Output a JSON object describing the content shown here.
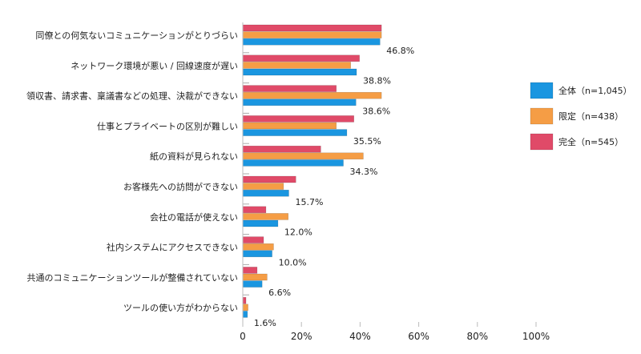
{
  "chart_data": {
    "type": "bar",
    "orientation": "horizontal",
    "title": "",
    "xlabel": "",
    "ylabel": "",
    "xlim": [
      0,
      100
    ],
    "x_ticks": [
      "0",
      "20%",
      "40%",
      "60%",
      "80%",
      "100%"
    ],
    "grid": false,
    "legend_position": "right",
    "categories": [
      "同僚との何気ないコミュニケーションがとりづらい",
      "ネットワーク環境が悪い / 回線速度が遅い",
      "領収書、請求書、稟議書などの処理、決裁ができない",
      "仕事とプライベートの区別が難しい",
      "紙の資料が見られない",
      "お客様先への訪問ができない",
      "会社の電話が使えない",
      "社内システムにアクセスできない",
      "共通のコミュニケーションツールが整備されていない",
      "ツールの使い方がわからない"
    ],
    "series": [
      {
        "name": "完全（n=545）",
        "color": "#e04a68",
        "values": [
          47.3,
          39.8,
          31.9,
          37.9,
          26.6,
          18.1,
          7.9,
          7.1,
          4.9,
          1.1
        ]
      },
      {
        "name": "限定（n=438）",
        "color": "#f59d45",
        "values": [
          47.3,
          36.8,
          47.3,
          31.9,
          41.1,
          13.9,
          15.5,
          10.5,
          8.3,
          1.8
        ]
      },
      {
        "name": "全体（n=1,045）",
        "color": "#1a96e0",
        "values": [
          46.8,
          38.8,
          38.6,
          35.5,
          34.3,
          15.7,
          12.0,
          10.0,
          6.6,
          1.6
        ]
      }
    ],
    "data_labels": [
      "46.8%",
      "38.8%",
      "38.6%",
      "35.5%",
      "34.3%",
      "15.7%",
      "12.0%",
      "10.0%",
      "6.6%",
      "1.6%"
    ],
    "legend": [
      "全体（n=1,045）",
      "限定（n=438）",
      "完全（n=545）"
    ]
  }
}
